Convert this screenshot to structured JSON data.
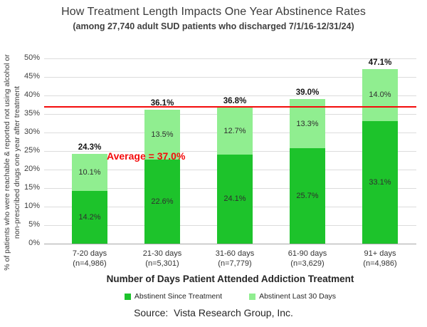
{
  "title": "How Treatment Length Impacts One Year Abstinence Rates",
  "subtitle": "(among 27,740 adult SUD patients who discharged 7/1/16-12/31/24)",
  "source": "Source:  Vista Research Group, Inc.",
  "chart_data": {
    "type": "bar",
    "stacked": true,
    "title": "How Treatment Length Impacts One Year Abstinence Rates",
    "subtitle": "(among 27,740 adult SUD patients who discharged 7/1/16-12/31/24)",
    "xlabel": "Number of Days Patient Attended Addiction Treatment",
    "ylabel": "% of patients who were reachable & reported not using alcohol or\nnon-prescribed drugs one year after treatment",
    "ylim": [
      0,
      50
    ],
    "ytick_step": 5,
    "ytick_suffix": "%",
    "grid": true,
    "legend_position": "bottom",
    "categories": [
      "7-20 days",
      "21-30 days",
      "31-60 days",
      "61-90 days",
      "91+ days"
    ],
    "category_counts": [
      "(n=4,986)",
      "(n=5,301)",
      "(n=7,779)",
      "(n=3,629)",
      "(n=4,986)"
    ],
    "series": [
      {
        "name": "Abstinent Since Treatment",
        "color": "#1dc32b",
        "values": [
          14.2,
          22.6,
          24.1,
          25.7,
          33.1
        ]
      },
      {
        "name": "Abstinent Last 30 Days",
        "color": "#90ee90",
        "values": [
          10.1,
          13.5,
          12.7,
          13.3,
          14.0
        ]
      }
    ],
    "totals": [
      24.3,
      36.1,
      36.8,
      39.0,
      47.1
    ],
    "average_line": {
      "value": 37.0,
      "label": "Average = 37.0%",
      "color": "#f40b0b"
    }
  },
  "colors": {
    "grid": "#dcdcdc",
    "axis": "#a8a8a8",
    "title_text": "#3a3a3a",
    "value_text": "#2f2f2f"
  }
}
